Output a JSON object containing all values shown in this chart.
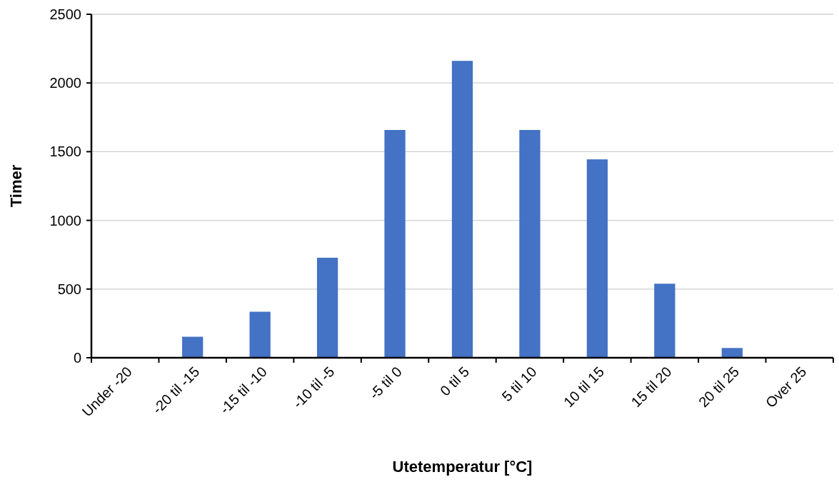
{
  "chart_data": {
    "type": "bar",
    "xlabel": "Utetemperatur [°C]",
    "ylabel": "Timer",
    "categories": [
      "Under -20",
      "-20 til -15",
      "-15 til -10",
      "-10 til -5",
      "-5 til 0",
      "0 til 5",
      "5 til 10",
      "10 til 15",
      "15 til 20",
      "20 til 25",
      "Over 25"
    ],
    "values": [
      0,
      153,
      335,
      728,
      1658,
      2161,
      1658,
      1444,
      539,
      71,
      0
    ],
    "color": "#4472c4",
    "ylim": [
      0,
      2500
    ],
    "yticks": [
      0,
      500,
      1000,
      1500,
      2000,
      2500
    ],
    "grid": "y"
  }
}
